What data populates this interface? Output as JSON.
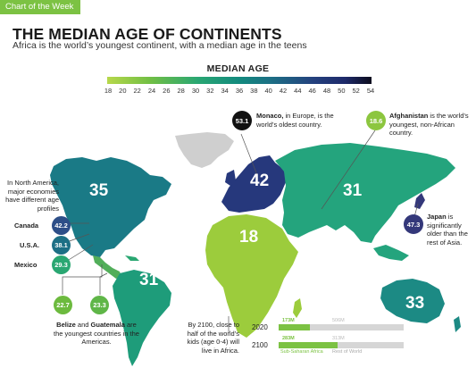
{
  "tag": "Chart of the Week",
  "title": "THE MEDIAN AGE OF CONTINENTS",
  "subtitle": "Africa is the world’s youngest continent, with a median age in the teens",
  "legend": {
    "title": "MEDIAN AGE",
    "ticks": [
      "18",
      "20",
      "22",
      "24",
      "26",
      "28",
      "30",
      "32",
      "34",
      "36",
      "38",
      "40",
      "42",
      "44",
      "46",
      "48",
      "50",
      "52",
      "54"
    ]
  },
  "continents": {
    "north_america": "35",
    "europe": "42",
    "asia": "31",
    "africa": "18",
    "south_america": "31",
    "oceania": "33"
  },
  "callouts": {
    "monaco": {
      "value": "53.1",
      "name": "Monaco,",
      "text": " in Europe, is the world’s oldest country."
    },
    "afghanistan": {
      "value": "18.6",
      "name": "Afghanistan",
      "text": " is the world’s youngest, non-African country."
    },
    "japan": {
      "value": "47.3",
      "name": "Japan",
      "text": " is significantly older than the rest of Asia."
    },
    "north_america_note": "In North America, major economies have different age profiles",
    "canada": {
      "name": "Canada",
      "value": "42.2"
    },
    "usa": {
      "name": "U.S.A.",
      "value": "38.1"
    },
    "mexico": {
      "name": "Mexico",
      "value": "29.3"
    },
    "belize_value": "22.7",
    "guatemala_value": "23.3",
    "belize_guatemala": {
      "name1": "Belize",
      "mid": " and ",
      "name2": "Guatemala",
      "text": " are the youngest countries in the Americas."
    },
    "africa_note": "By 2100, close to half of the world’s kids (age 0-4) will live in Africa."
  },
  "bars": {
    "rows": [
      {
        "year": "2020",
        "africa_label": "173M",
        "rest_label": "506M",
        "africa_share": 0.25
      },
      {
        "year": "2100",
        "africa_label": "283M",
        "rest_label": "313M",
        "africa_share": 0.47
      }
    ],
    "legend_africa": "Sub-Saharan Africa",
    "legend_rest": "Rest of World"
  },
  "colors": {
    "tag": "#7cc243",
    "africa": "#9ccc3c",
    "north_america": "#1a7a86",
    "europe": "#26387c",
    "asia": "#24a47d",
    "south_america": "#1e9c7a",
    "oceania": "#1c8a84",
    "greenland": "#cfcfcf",
    "monaco": "#111111",
    "japan": "#34387a"
  }
}
